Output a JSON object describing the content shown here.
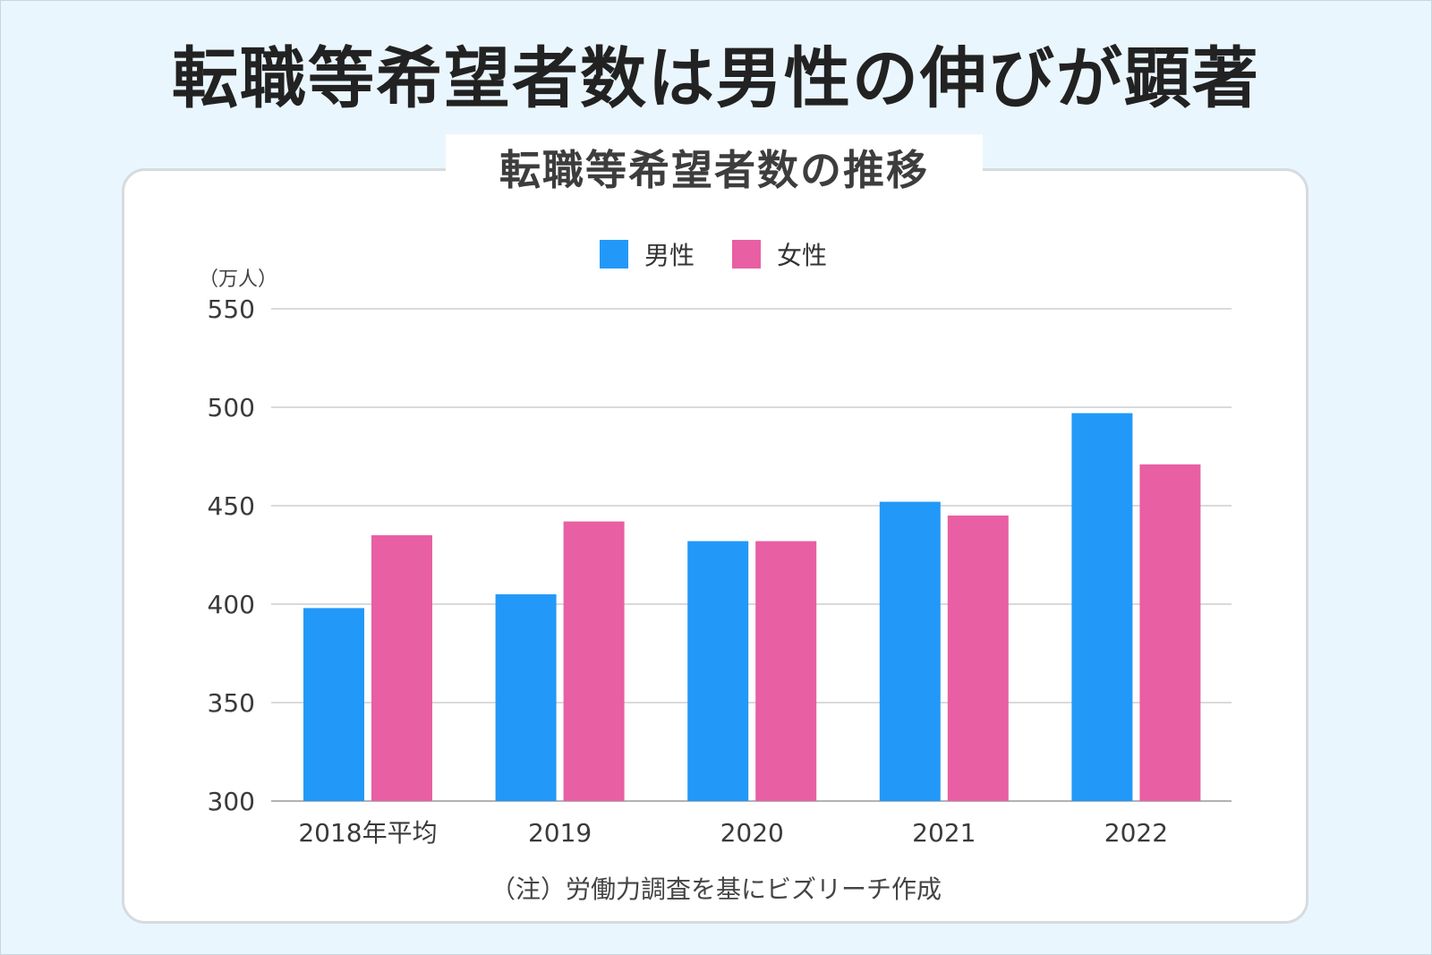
{
  "headline": "転職等希望者数は男性の伸びが顕著",
  "chart_data": {
    "type": "bar",
    "title": "転職等希望者数の推移",
    "ylabel": "（万人）",
    "xlabel": "",
    "categories": [
      "2018年平均",
      "2019",
      "2020",
      "2021",
      "2022"
    ],
    "series": [
      {
        "name": "男性",
        "color": "#2299f8",
        "values": [
          398,
          405,
          432,
          452,
          497
        ]
      },
      {
        "name": "女性",
        "color": "#e85fa3",
        "values": [
          435,
          442,
          432,
          445,
          471
        ]
      }
    ],
    "ylim": [
      300,
      550
    ],
    "yticks": [
      "300",
      "350",
      "400",
      "450",
      "500",
      "550"
    ],
    "grid": true,
    "legend_position": "top-center"
  },
  "note": "（注）労働力調査を基にビズリーチ作成"
}
